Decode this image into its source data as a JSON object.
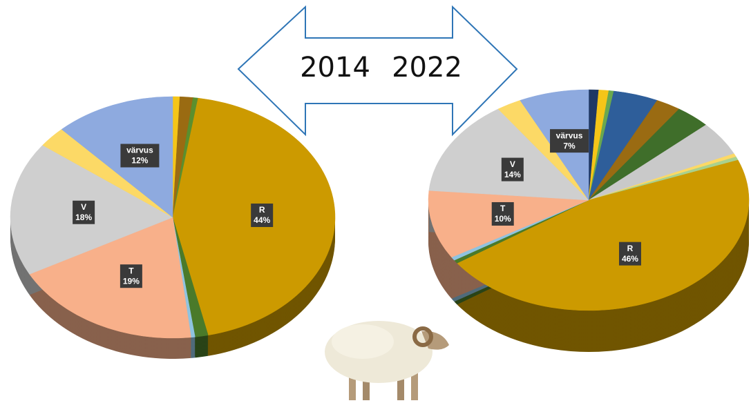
{
  "chart_data": [
    {
      "type": "pie3d",
      "title": "2014",
      "categories": [
        null,
        null,
        null,
        "R",
        null,
        null,
        "T",
        "V",
        null,
        "värvus"
      ],
      "values": [
        0.7,
        1.3,
        0.5,
        44,
        1.3,
        0.4,
        19,
        18,
        2.8,
        12
      ],
      "value_labels": [
        null,
        null,
        null,
        "44%",
        null,
        null,
        "19%",
        "18%",
        null,
        "12%"
      ],
      "colors": [
        "#f5c518",
        "#9a6b12",
        "#5b8f2e",
        "#cc9a00",
        "#4a7a2a",
        "#8fc3e0",
        "#f8b08a",
        "#cfcfcf",
        "#fcd966",
        "#8eaadf"
      ]
    },
    {
      "type": "pie3d",
      "title": "2022",
      "categories": [
        null,
        null,
        null,
        null,
        null,
        null,
        null,
        null,
        null,
        "R",
        null,
        null,
        "T",
        "V",
        null,
        "värvus"
      ],
      "values": [
        1,
        1,
        0.5,
        4.5,
        2.5,
        3.5,
        5,
        0.5,
        0.5,
        46,
        0.5,
        0.5,
        10,
        14,
        2.5,
        7
      ],
      "value_labels": [
        null,
        null,
        null,
        null,
        null,
        null,
        null,
        null,
        null,
        "46%",
        null,
        null,
        "10%",
        "14%",
        null,
        "7%"
      ],
      "colors": [
        "#1f3864",
        "#f5c518",
        "#6aa84f",
        "#2e5e9a",
        "#9a6b12",
        "#3f6e2a",
        "#c9c9c9",
        "#fcd966",
        "#a9d18e",
        "#cc9a00",
        "#4a7a2a",
        "#8fc3e0",
        "#f8b08a",
        "#cfcfcf",
        "#fcd966",
        "#8eaadf"
      ]
    }
  ]
}
